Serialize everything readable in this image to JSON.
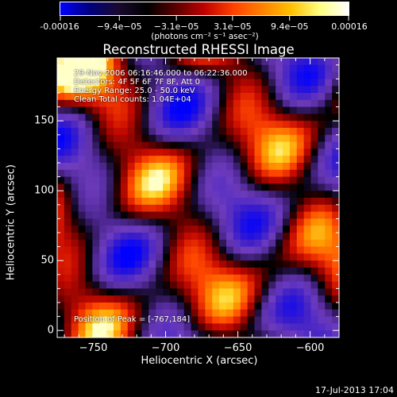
{
  "colorbar": {
    "tick_labels": [
      "-0.00016",
      "−9.4e−05",
      "−3.1e−05",
      "3.1e−05",
      "9.4e−05",
      "0.00016"
    ],
    "tick_values": [
      -0.00016,
      -9.4e-05,
      -3.1e-05,
      3.1e-05,
      9.4e-05,
      0.00016
    ],
    "unit_label": "(photons cm⁻² s⁻¹ asec⁻²)",
    "colors": [
      "#0000ff",
      "#000080",
      "#1a0a30",
      "#000000",
      "#5a0000",
      "#c00000",
      "#ff4000",
      "#ff8000",
      "#ffc000",
      "#ffff80",
      "#ffffff"
    ]
  },
  "chart_data": {
    "type": "heatmap",
    "title": "Reconstructed RHESSI Image",
    "xlabel": "Heliocentric X (arcsec)",
    "ylabel": "Heliocentric Y (arcsec)",
    "xlim": [
      -775,
      -580
    ],
    "ylim": [
      -5,
      195
    ],
    "xticks": [
      -750,
      -700,
      -650,
      -600
    ],
    "xtick_labels": [
      "−750",
      "−700",
      "−650",
      "−600"
    ],
    "yticks": [
      0,
      50,
      100,
      150
    ],
    "ytick_labels": [
      "0",
      "50",
      "100",
      "150"
    ],
    "value_range": [
      -0.00016,
      0.00016
    ],
    "peak_position": [
      -767,
      184
    ],
    "annotations": {
      "time": "29-Nov-2006 06:16:46.000 to 06:22:36.000",
      "detectors": "Detectors: 4F 5F 6F 7F 8F, Att 0",
      "energy": "Energy Range: 25.0 - 50.0 keV",
      "method": "Clean    Total counts: 1.04E+04",
      "peak": "Position of Peak = [-767,184]"
    }
  },
  "footer_timestamp": "17-Jul-2013 17:04"
}
